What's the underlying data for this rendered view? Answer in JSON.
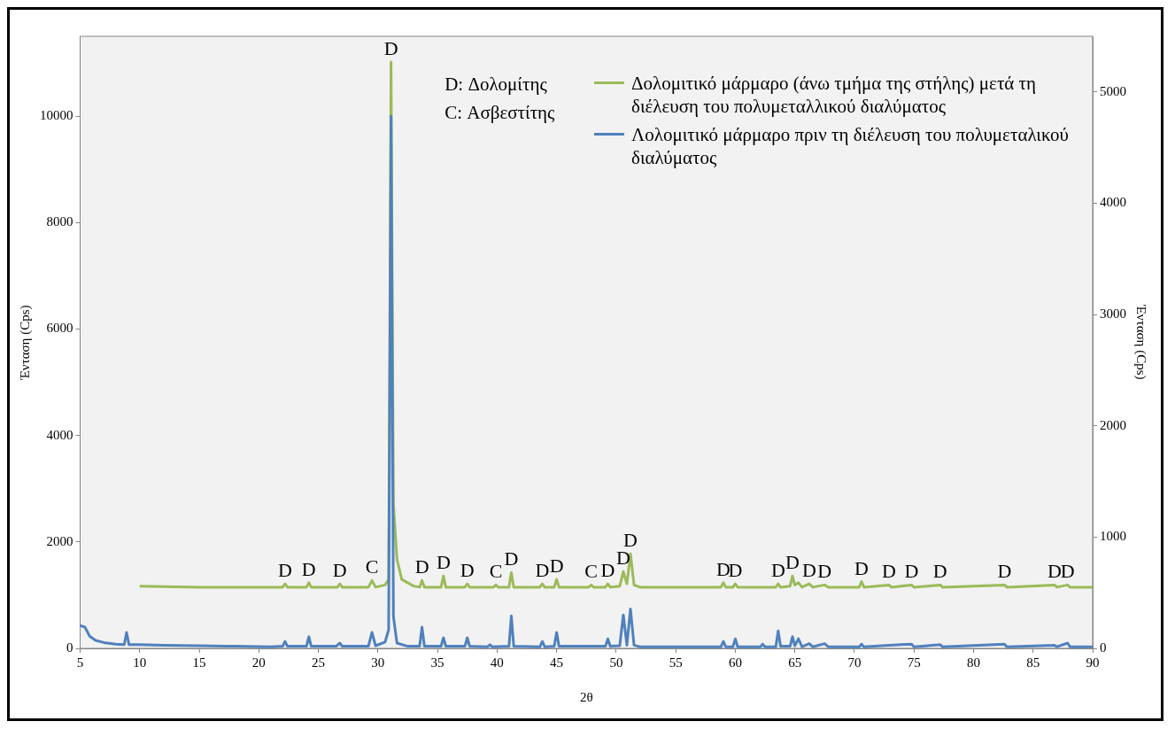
{
  "chart_data": {
    "type": "line",
    "xlabel": "2θ",
    "ylabel": "Ένταση (Cps)",
    "y2label": "Ένταση (Cps)",
    "xlim": [
      5,
      90
    ],
    "xticks": [
      5,
      10,
      15,
      20,
      25,
      30,
      35,
      40,
      45,
      50,
      55,
      60,
      65,
      70,
      75,
      80,
      85,
      90
    ],
    "ylim": [
      0,
      11500
    ],
    "yticks": [
      0,
      2000,
      4000,
      6000,
      8000,
      10000
    ],
    "y2lim": [
      0,
      5500
    ],
    "y2ticks": [
      0,
      1000,
      2000,
      3000,
      4000,
      5000
    ],
    "grid": false,
    "legend": "top right",
    "marker": "none",
    "line_style": "solid",
    "series": [
      {
        "name": "Δολομιτικό μάρμαρο (άνω τμήμα της στήλης) μετά τη διέλευση του πολυμεταλλικού διαλύματος",
        "color": "#9bbb59",
        "axis": "y2",
        "x": [
          10,
          15,
          20,
          22,
          22.2,
          22.4,
          24,
          24.2,
          24.4,
          26.6,
          26.8,
          27,
          29.2,
          29.5,
          29.8,
          30.6,
          30.9,
          31.1,
          31.3,
          31.6,
          32,
          33,
          33.5,
          33.7,
          33.9,
          35.3,
          35.5,
          35.7,
          37.3,
          37.5,
          37.7,
          39.7,
          39.9,
          40.1,
          41,
          41.2,
          41.4,
          43.6,
          43.8,
          44,
          44.8,
          45,
          45.2,
          47.7,
          47.9,
          48.1,
          49.1,
          49.3,
          49.5,
          50.3,
          50.6,
          50.9,
          51.2,
          51.5,
          52,
          58.8,
          59,
          59.2,
          59.8,
          60,
          60.2,
          63.4,
          63.6,
          63.8,
          64.6,
          64.8,
          65,
          65.3,
          65.6,
          66.2,
          66.5,
          67.5,
          67.8,
          70.4,
          70.6,
          70.8,
          72.9,
          73.1,
          74.8,
          75,
          77.2,
          77.4,
          82.6,
          82.8,
          86.8,
          87,
          87.9,
          88.1,
          90
        ],
        "values": [
          560,
          550,
          550,
          550,
          580,
          550,
          550,
          590,
          550,
          550,
          580,
          550,
          550,
          610,
          550,
          570,
          620,
          5270,
          1300,
          800,
          620,
          560,
          550,
          610,
          550,
          550,
          650,
          550,
          550,
          580,
          550,
          550,
          570,
          550,
          550,
          680,
          550,
          550,
          580,
          550,
          550,
          620,
          550,
          550,
          570,
          550,
          550,
          580,
          550,
          560,
          690,
          580,
          850,
          570,
          550,
          550,
          590,
          550,
          550,
          580,
          550,
          550,
          580,
          550,
          560,
          650,
          570,
          590,
          550,
          580,
          550,
          570,
          550,
          550,
          600,
          550,
          570,
          550,
          570,
          550,
          570,
          550,
          570,
          550,
          570,
          550,
          570,
          550,
          550
        ]
      },
      {
        "name": "Λολομιτικό μάρμαρο πριν τη διέλευση του πολυμεταλικού διαλύματος",
        "color": "#4f81bd",
        "axis": "y",
        "x": [
          5,
          5.4,
          5.8,
          6.3,
          7,
          8,
          8.7,
          8.9,
          9.1,
          10,
          12,
          15,
          18,
          21,
          22,
          22.2,
          22.4,
          23.5,
          24,
          24.2,
          24.4,
          26.5,
          26.8,
          27,
          29.2,
          29.5,
          29.8,
          30.6,
          30.9,
          31.1,
          31.3,
          31.6,
          32.5,
          33.5,
          33.7,
          33.9,
          35.3,
          35.5,
          35.7,
          37.3,
          37.5,
          37.7,
          39.2,
          39.4,
          39.6,
          41,
          41.2,
          41.4,
          43.6,
          43.8,
          44,
          44.8,
          45,
          45.2,
          49.1,
          49.3,
          49.5,
          50.3,
          50.6,
          50.9,
          51.2,
          51.5,
          52,
          58.8,
          59,
          59.2,
          59.8,
          60,
          60.2,
          62.1,
          62.3,
          62.5,
          63.4,
          63.6,
          63.8,
          64.6,
          64.8,
          65,
          65.3,
          65.6,
          66.2,
          66.5,
          67.5,
          67.8,
          70.4,
          70.6,
          70.8,
          72.9,
          74.8,
          75,
          77.2,
          77.4,
          82.6,
          82.8,
          86.8,
          87,
          87.9,
          88.1,
          90
        ],
        "values": [
          430,
          400,
          230,
          150,
          110,
          80,
          70,
          300,
          70,
          70,
          60,
          50,
          40,
          30,
          40,
          130,
          40,
          40,
          40,
          220,
          40,
          40,
          100,
          40,
          40,
          300,
          50,
          120,
          350,
          10000,
          600,
          100,
          40,
          40,
          400,
          40,
          40,
          200,
          40,
          40,
          200,
          40,
          30,
          70,
          30,
          40,
          610,
          40,
          30,
          130,
          30,
          40,
          300,
          40,
          40,
          180,
          40,
          50,
          630,
          60,
          740,
          60,
          30,
          30,
          130,
          30,
          30,
          180,
          30,
          30,
          80,
          30,
          30,
          330,
          40,
          40,
          220,
          50,
          180,
          30,
          90,
          30,
          90,
          30,
          30,
          80,
          30,
          60,
          80,
          30,
          70,
          30,
          80,
          30,
          60,
          30,
          100,
          30,
          30
        ]
      }
    ],
    "annotations": [
      "D: Δολομίτης",
      "C: Ασβεστίτης",
      {
        "text": "D",
        "x": 31.1,
        "y": 11020
      },
      {
        "text": "D",
        "x": 22.2,
        "y": 1210
      },
      {
        "text": "D",
        "x": 24.2,
        "y": 1230
      },
      {
        "text": "D",
        "x": 26.8,
        "y": 1210
      },
      {
        "text": "C",
        "x": 29.5,
        "y": 1280
      },
      {
        "text": "D",
        "x": 33.7,
        "y": 1280
      },
      {
        "text": "D",
        "x": 35.5,
        "y": 1360
      },
      {
        "text": "D",
        "x": 37.5,
        "y": 1210
      },
      {
        "text": "C",
        "x": 39.9,
        "y": 1190
      },
      {
        "text": "D",
        "x": 41.2,
        "y": 1420
      },
      {
        "text": "D",
        "x": 43.8,
        "y": 1210
      },
      {
        "text": "D",
        "x": 45,
        "y": 1300
      },
      {
        "text": "C",
        "x": 47.9,
        "y": 1190
      },
      {
        "text": "D",
        "x": 49.3,
        "y": 1210
      },
      {
        "text": "D",
        "x": 50.6,
        "y": 1440
      },
      {
        "text": "D",
        "x": 51.2,
        "y": 1780
      },
      {
        "text": "D",
        "x": 59,
        "y": 1230
      },
      {
        "text": "D",
        "x": 60,
        "y": 1210
      },
      {
        "text": "D",
        "x": 63.6,
        "y": 1210
      },
      {
        "text": "D",
        "x": 64.8,
        "y": 1360
      },
      {
        "text": "D",
        "x": 66.2,
        "y": 1210
      },
      {
        "text": "D",
        "x": 67.5,
        "y": 1190
      },
      {
        "text": "D",
        "x": 70.6,
        "y": 1250
      },
      {
        "text": "D",
        "x": 72.9,
        "y": 1190
      },
      {
        "text": "D",
        "x": 74.8,
        "y": 1190
      },
      {
        "text": "D",
        "x": 77.2,
        "y": 1190
      },
      {
        "text": "D",
        "x": 82.6,
        "y": 1190
      },
      {
        "text": "D",
        "x": 86.8,
        "y": 1190
      },
      {
        "text": "D",
        "x": 87.9,
        "y": 1190
      }
    ]
  }
}
